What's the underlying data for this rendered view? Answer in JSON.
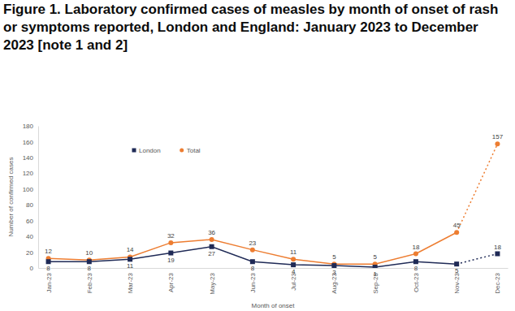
{
  "chart_data": {
    "type": "line",
    "title": "Figure 1. Laboratory confirmed cases of measles by month of onset of rash or symptoms reported, London and England: January 2023 to December 2023 [note 1 and 2]",
    "x_label": "Month of onset",
    "y_label": "Number of confirmed cases",
    "categories": [
      "Jan-23",
      "Feb-23",
      "Mar-23",
      "Apr-23",
      "May-23",
      "Jun-23",
      "Jul-23",
      "Aug-23",
      "Sep-23",
      "Oct-23",
      "Nov-23",
      "Dec-23"
    ],
    "series": [
      {
        "name": "London",
        "color": "#1f2a56",
        "marker": "square",
        "values": [
          8,
          8,
          11,
          19,
          27,
          8,
          4,
          3,
          1,
          8,
          5,
          18
        ]
      },
      {
        "name": "Total",
        "color": "#ed7d31",
        "marker": "circle",
        "values": [
          12,
          10,
          14,
          32,
          36,
          23,
          11,
          5,
          5,
          18,
          45,
          157
        ]
      }
    ],
    "ylim": [
      0,
      180
    ],
    "yticks": [
      0,
      20,
      40,
      60,
      80,
      100,
      120,
      140,
      160,
      180
    ],
    "grid": false,
    "legend": "top-left",
    "data_labels": true
  }
}
